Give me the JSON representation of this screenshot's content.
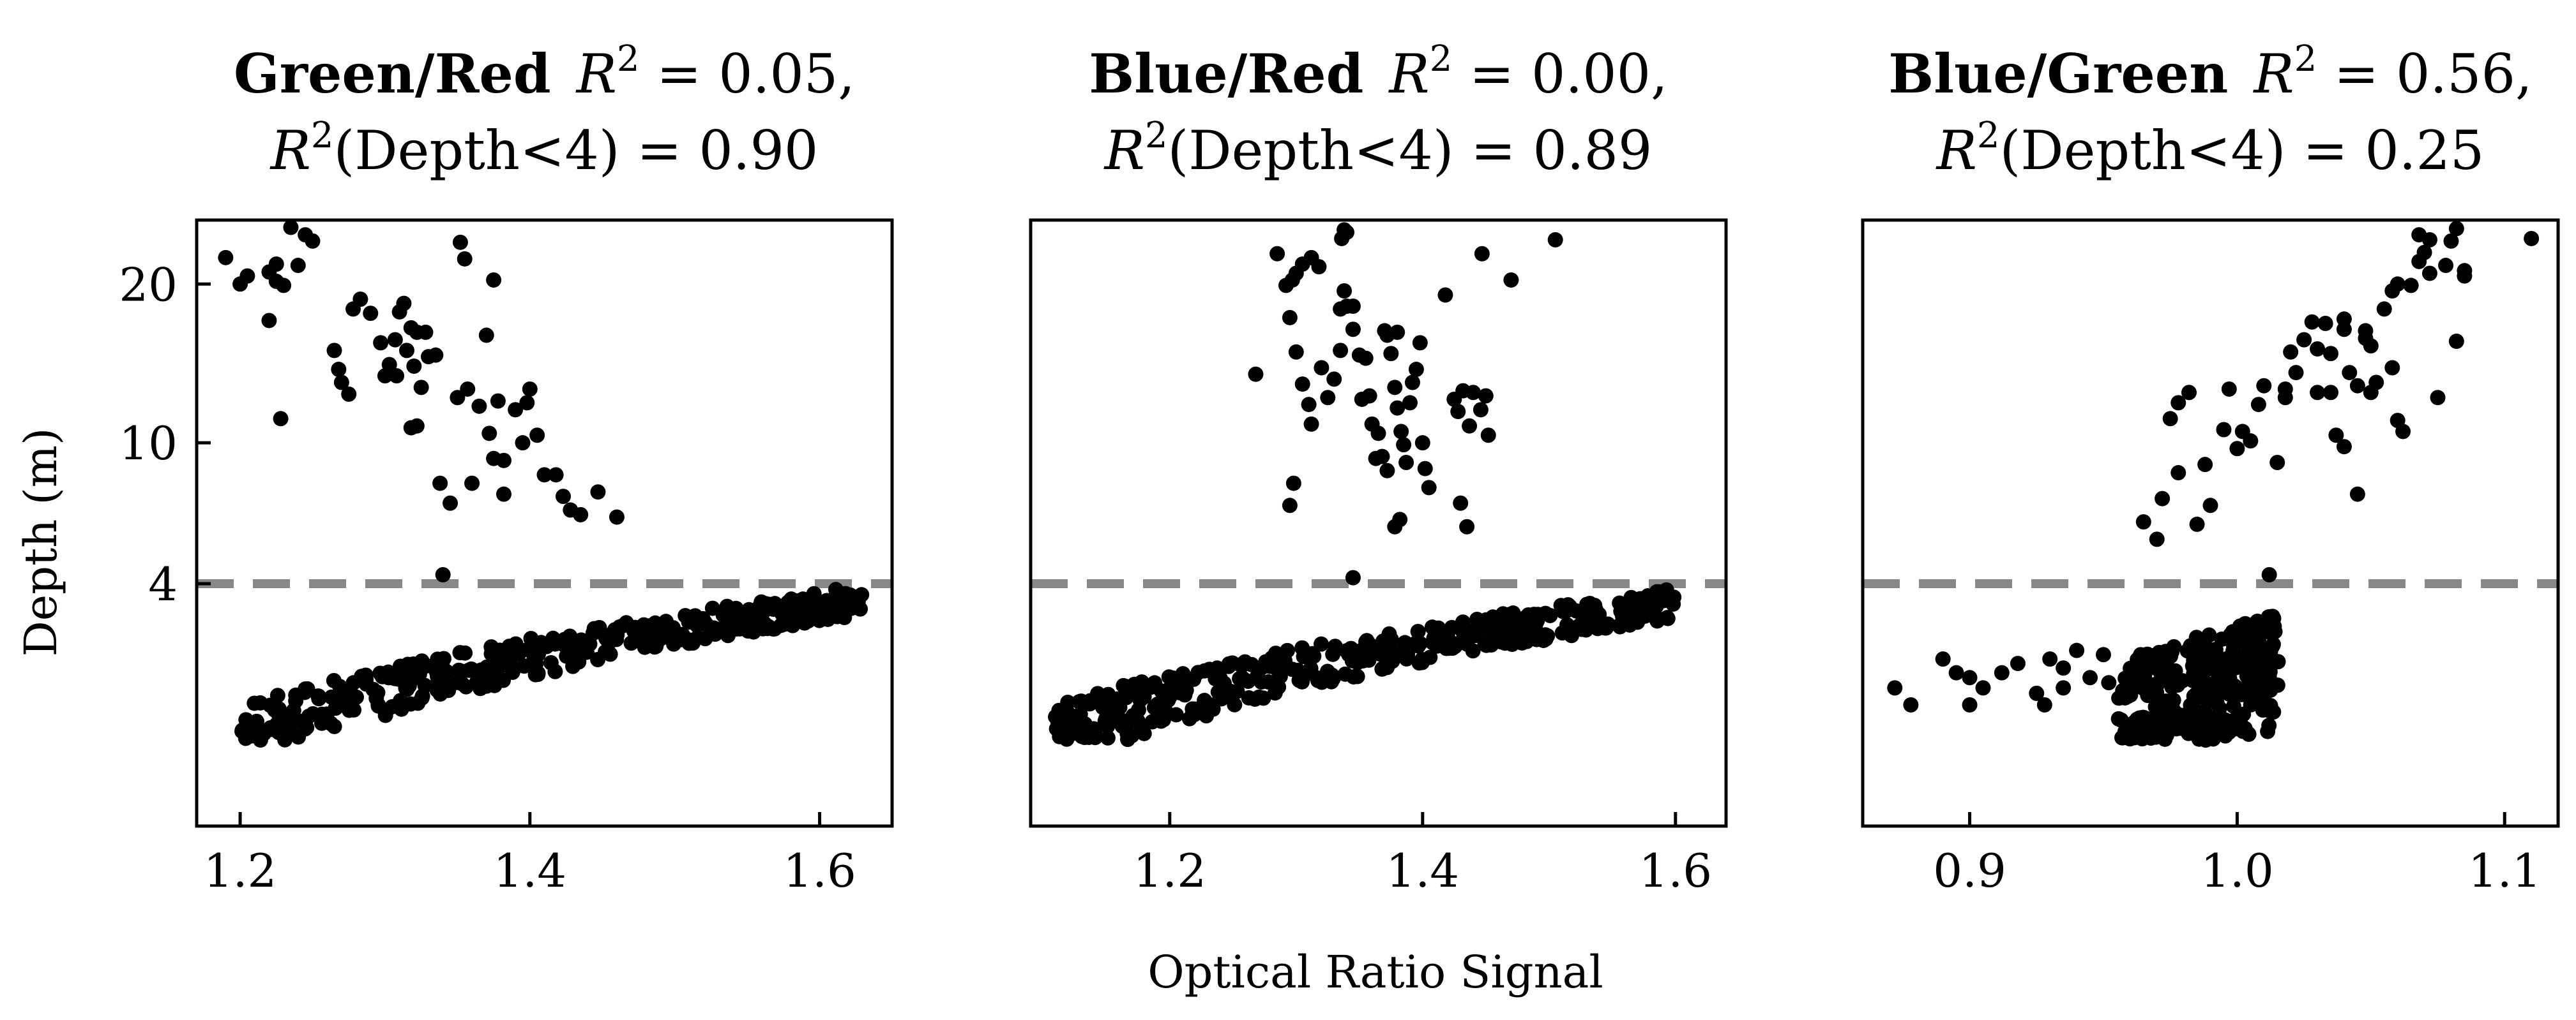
{
  "figure": {
    "xlabel": "Optical Ratio Signal",
    "ylabel": "Depth (m)",
    "marker_color": "#000000",
    "threshold_color": "#888888"
  },
  "chart_data": [
    {
      "type": "scatter",
      "title_ratio": "Green/Red",
      "title_r2": "0.05,",
      "title_r2_depth": "0.90",
      "xlim": [
        1.17,
        1.65
      ],
      "ylim": [
        0,
        25
      ],
      "y_scale": "sqrt",
      "x_ticks": [
        "1.2",
        "1.4",
        "1.6"
      ],
      "y_ticks": [
        "4",
        "10",
        "20"
      ],
      "threshold_depth": 4,
      "shallow_band": {
        "x_start": 1.2,
        "x_end": 1.63,
        "depth_start": 0.6,
        "depth_end": 3.5,
        "count": 380
      },
      "points": [
        [
          1.19,
          22.0
        ],
        [
          1.2,
          20.0
        ],
        [
          1.205,
          20.6
        ],
        [
          1.22,
          20.9
        ],
        [
          1.225,
          20.2
        ],
        [
          1.23,
          19.9
        ],
        [
          1.22,
          17.4
        ],
        [
          1.235,
          24.4
        ],
        [
          1.24,
          21.4
        ],
        [
          1.225,
          21.5
        ],
        [
          1.25,
          23.3
        ],
        [
          1.245,
          23.8
        ],
        [
          1.228,
          11.3
        ],
        [
          1.265,
          15.4
        ],
        [
          1.27,
          13.4
        ],
        [
          1.268,
          14.2
        ],
        [
          1.275,
          12.7
        ],
        [
          1.278,
          18.2
        ],
        [
          1.283,
          18.9
        ],
        [
          1.29,
          17.9
        ],
        [
          1.297,
          15.9
        ],
        [
          1.303,
          14.5
        ],
        [
          1.307,
          16.1
        ],
        [
          1.31,
          18.0
        ],
        [
          1.313,
          18.6
        ],
        [
          1.318,
          16.9
        ],
        [
          1.3,
          13.8
        ],
        [
          1.308,
          13.8
        ],
        [
          1.315,
          15.4
        ],
        [
          1.32,
          14.4
        ],
        [
          1.322,
          16.6
        ],
        [
          1.328,
          16.6
        ],
        [
          1.33,
          15.0
        ],
        [
          1.335,
          15.1
        ],
        [
          1.325,
          13.1
        ],
        [
          1.318,
          10.8
        ],
        [
          1.322,
          10.9
        ],
        [
          1.338,
          8.0
        ],
        [
          1.345,
          7.1
        ],
        [
          1.35,
          12.5
        ],
        [
          1.357,
          13.0
        ],
        [
          1.365,
          12.0
        ],
        [
          1.37,
          16.4
        ],
        [
          1.372,
          10.5
        ],
        [
          1.378,
          12.3
        ],
        [
          1.36,
          8.0
        ],
        [
          1.375,
          9.2
        ],
        [
          1.382,
          9.1
        ],
        [
          1.39,
          11.8
        ],
        [
          1.395,
          10.0
        ],
        [
          1.398,
          12.2
        ],
        [
          1.4,
          13.0
        ],
        [
          1.405,
          10.4
        ],
        [
          1.41,
          8.4
        ],
        [
          1.418,
          8.4
        ],
        [
          1.423,
          7.4
        ],
        [
          1.428,
          6.8
        ],
        [
          1.435,
          6.6
        ],
        [
          1.447,
          7.6
        ],
        [
          1.46,
          6.5
        ],
        [
          1.382,
          7.5
        ],
        [
          1.352,
          23.2
        ],
        [
          1.355,
          21.9
        ],
        [
          1.375,
          20.3
        ],
        [
          1.34,
          4.3
        ]
      ]
    },
    {
      "type": "scatter",
      "title_ratio": "Blue/Red",
      "title_r2": "0.00,",
      "title_r2_depth": "0.89",
      "xlim": [
        1.09,
        1.64
      ],
      "ylim": [
        0,
        25
      ],
      "y_scale": "sqrt",
      "x_ticks": [
        "1.2",
        "1.4",
        "1.6"
      ],
      "y_ticks": [],
      "threshold_depth": 4,
      "shallow_band": {
        "x_start": 1.11,
        "x_end": 1.6,
        "depth_start": 0.6,
        "depth_end": 3.4,
        "count": 400
      },
      "points": [
        [
          1.268,
          13.9
        ],
        [
          1.285,
          22.3
        ],
        [
          1.292,
          19.9
        ],
        [
          1.297,
          20.3
        ],
        [
          1.3,
          20.8
        ],
        [
          1.305,
          21.5
        ],
        [
          1.312,
          22.0
        ],
        [
          1.318,
          21.3
        ],
        [
          1.295,
          17.6
        ],
        [
          1.3,
          15.3
        ],
        [
          1.305,
          13.3
        ],
        [
          1.31,
          12.1
        ],
        [
          1.312,
          11.0
        ],
        [
          1.298,
          8.0
        ],
        [
          1.295,
          7.0
        ],
        [
          1.32,
          14.3
        ],
        [
          1.325,
          12.5
        ],
        [
          1.33,
          13.6
        ],
        [
          1.335,
          15.4
        ],
        [
          1.335,
          18.2
        ],
        [
          1.338,
          19.5
        ],
        [
          1.34,
          18.4
        ],
        [
          1.345,
          18.4
        ],
        [
          1.338,
          24.2
        ],
        [
          1.34,
          24.0
        ],
        [
          1.336,
          23.5
        ],
        [
          1.345,
          16.8
        ],
        [
          1.35,
          15.1
        ],
        [
          1.352,
          12.4
        ],
        [
          1.355,
          14.9
        ],
        [
          1.358,
          12.6
        ],
        [
          1.36,
          11.0
        ],
        [
          1.363,
          9.2
        ],
        [
          1.365,
          10.5
        ],
        [
          1.37,
          16.7
        ],
        [
          1.372,
          16.4
        ],
        [
          1.375,
          15.2
        ],
        [
          1.378,
          13.1
        ],
        [
          1.38,
          11.9
        ],
        [
          1.383,
          10.6
        ],
        [
          1.385,
          9.9
        ],
        [
          1.387,
          9.0
        ],
        [
          1.39,
          12.2
        ],
        [
          1.392,
          13.4
        ],
        [
          1.395,
          14.2
        ],
        [
          1.398,
          15.9
        ],
        [
          1.4,
          10.0
        ],
        [
          1.402,
          8.7
        ],
        [
          1.405,
          7.8
        ],
        [
          1.378,
          6.1
        ],
        [
          1.382,
          6.4
        ],
        [
          1.372,
          8.6
        ],
        [
          1.368,
          9.3
        ],
        [
          1.38,
          16.6
        ],
        [
          1.418,
          19.2
        ],
        [
          1.425,
          12.4
        ],
        [
          1.428,
          11.7
        ],
        [
          1.432,
          12.9
        ],
        [
          1.437,
          10.9
        ],
        [
          1.44,
          12.8
        ],
        [
          1.446,
          11.8
        ],
        [
          1.45,
          12.6
        ],
        [
          1.452,
          10.4
        ],
        [
          1.43,
          7.1
        ],
        [
          1.435,
          6.1
        ],
        [
          1.447,
          22.3
        ],
        [
          1.47,
          20.3
        ],
        [
          1.505,
          23.4
        ],
        [
          1.345,
          4.2
        ]
      ]
    },
    {
      "type": "scatter",
      "title_ratio": "Blue/Green",
      "title_r2": "0.56,",
      "title_r2_depth": "0.25",
      "xlim": [
        0.86,
        1.12
      ],
      "ylim": [
        0,
        25
      ],
      "y_scale": "sqrt",
      "x_ticks": [
        "0.9",
        "1.0",
        "1.1"
      ],
      "y_ticks": [],
      "threshold_depth": 4,
      "shallow_band": {
        "x_start": 0.955,
        "x_end": 1.015,
        "depth_start": 0.6,
        "depth_end": 3.9,
        "count": 320
      },
      "points": [
        [
          0.872,
          1.3
        ],
        [
          0.878,
          1.0
        ],
        [
          0.89,
          1.9
        ],
        [
          0.895,
          1.6
        ],
        [
          0.9,
          1.5
        ],
        [
          0.905,
          1.3
        ],
        [
          0.912,
          1.6
        ],
        [
          0.918,
          1.8
        ],
        [
          0.925,
          1.2
        ],
        [
          0.93,
          1.9
        ],
        [
          0.935,
          1.7
        ],
        [
          0.94,
          2.1
        ],
        [
          0.945,
          1.5
        ],
        [
          0.928,
          1.0
        ],
        [
          0.95,
          2.0
        ],
        [
          0.952,
          1.4
        ],
        [
          0.9,
          1.0
        ],
        [
          0.935,
          1.3
        ],
        [
          0.965,
          6.3
        ],
        [
          0.97,
          5.6
        ],
        [
          0.972,
          7.3
        ],
        [
          0.978,
          8.5
        ],
        [
          0.975,
          11.3
        ],
        [
          0.978,
          12.2
        ],
        [
          0.982,
          12.8
        ],
        [
          0.985,
          6.2
        ],
        [
          0.988,
          8.9
        ],
        [
          0.99,
          7.0
        ],
        [
          0.995,
          10.7
        ],
        [
          0.997,
          13.0
        ],
        [
          1.0,
          9.7
        ],
        [
          1.002,
          10.6
        ],
        [
          1.005,
          10.1
        ],
        [
          1.008,
          12.1
        ],
        [
          1.01,
          13.2
        ],
        [
          1.015,
          9.0
        ],
        [
          1.018,
          12.5
        ],
        [
          1.02,
          15.3
        ],
        [
          1.022,
          14.0
        ],
        [
          1.025,
          16.1
        ],
        [
          1.028,
          17.3
        ],
        [
          1.03,
          15.5
        ],
        [
          1.03,
          12.8
        ],
        [
          1.033,
          17.2
        ],
        [
          1.035,
          15.2
        ],
        [
          1.035,
          12.8
        ],
        [
          1.037,
          10.4
        ],
        [
          1.04,
          16.8
        ],
        [
          1.04,
          9.8
        ],
        [
          1.042,
          14.0
        ],
        [
          1.045,
          13.2
        ],
        [
          1.045,
          7.5
        ],
        [
          1.048,
          16.2
        ],
        [
          1.05,
          15.7
        ],
        [
          1.05,
          12.8
        ],
        [
          1.052,
          13.4
        ],
        [
          1.055,
          18.2
        ],
        [
          1.058,
          19.5
        ],
        [
          1.06,
          20.0
        ],
        [
          1.058,
          14.3
        ],
        [
          1.06,
          11.2
        ],
        [
          1.062,
          10.6
        ],
        [
          1.065,
          19.9
        ],
        [
          1.068,
          21.7
        ],
        [
          1.07,
          22.4
        ],
        [
          1.072,
          20.8
        ],
        [
          1.075,
          12.5
        ],
        [
          1.078,
          21.4
        ],
        [
          1.08,
          23.3
        ],
        [
          1.082,
          16.0
        ],
        [
          1.085,
          20.6
        ],
        [
          1.085,
          21.0
        ],
        [
          1.068,
          23.8
        ],
        [
          1.072,
          23.4
        ],
        [
          1.082,
          24.3
        ],
        [
          1.11,
          23.5
        ],
        [
          1.012,
          4.3
        ],
        [
          1.018,
          13.0
        ],
        [
          1.04,
          17.5
        ],
        [
          1.048,
          16.7
        ]
      ]
    }
  ]
}
